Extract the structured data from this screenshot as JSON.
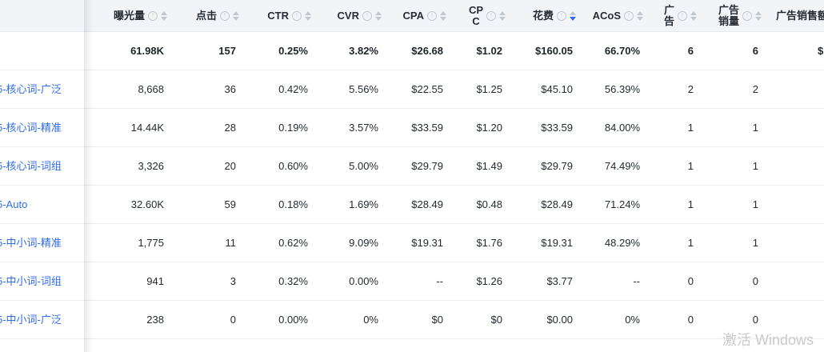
{
  "table": {
    "columns": [
      {
        "label": "曝光量"
      },
      {
        "label": "点击"
      },
      {
        "label": "CTR"
      },
      {
        "label": "CVR"
      },
      {
        "label": "CPA"
      },
      {
        "label": "CP\nC"
      },
      {
        "label": "花费",
        "sorted": "desc"
      },
      {
        "label": "ACoS"
      },
      {
        "label": "广\n告"
      },
      {
        "label": "广告\n销量"
      },
      {
        "label": "广告销售额"
      }
    ],
    "totals": {
      "impressions": "61.98K",
      "clicks": "157",
      "ctr": "0.25%",
      "cvr": "3.82%",
      "cpa": "$26.68",
      "cpc": "$1.02",
      "spend": "$160.05",
      "acos": "66.70%",
      "ad_orders": "6",
      "ad_units": "6",
      "ad_sales": "$"
    },
    "rows": [
      {
        "name": "5-核心词-广泛",
        "impressions": "8,668",
        "clicks": "36",
        "ctr": "0.42%",
        "cvr": "5.56%",
        "cpa": "$22.55",
        "cpc": "$1.25",
        "spend": "$45.10",
        "acos": "56.39%",
        "ad_orders": "2",
        "ad_units": "2"
      },
      {
        "name": "5-核心词-精准",
        "impressions": "14.44K",
        "clicks": "28",
        "ctr": "0.19%",
        "cvr": "3.57%",
        "cpa": "$33.59",
        "cpc": "$1.20",
        "spend": "$33.59",
        "acos": "84.00%",
        "ad_orders": "1",
        "ad_units": "1"
      },
      {
        "name": "5-核心词-词组",
        "impressions": "3,326",
        "clicks": "20",
        "ctr": "0.60%",
        "cvr": "5.00%",
        "cpa": "$29.79",
        "cpc": "$1.49",
        "spend": "$29.79",
        "acos": "74.49%",
        "ad_orders": "1",
        "ad_units": "1"
      },
      {
        "name": "5-Auto",
        "impressions": "32.60K",
        "clicks": "59",
        "ctr": "0.18%",
        "cvr": "1.69%",
        "cpa": "$28.49",
        "cpc": "$0.48",
        "spend": "$28.49",
        "acos": "71.24%",
        "ad_orders": "1",
        "ad_units": "1"
      },
      {
        "name": "5-中小词-精准",
        "impressions": "1,775",
        "clicks": "11",
        "ctr": "0.62%",
        "cvr": "9.09%",
        "cpa": "$19.31",
        "cpc": "$1.76",
        "spend": "$19.31",
        "acos": "48.29%",
        "ad_orders": "1",
        "ad_units": "1"
      },
      {
        "name": "5-中小词-词组",
        "impressions": "941",
        "clicks": "3",
        "ctr": "0.32%",
        "cvr": "0.00%",
        "cpa": "--",
        "cpc": "$1.26",
        "spend": "$3.77",
        "acos": "--",
        "ad_orders": "0",
        "ad_units": "0"
      },
      {
        "name": "5-中小词-广泛",
        "impressions": "238",
        "clicks": "0",
        "ctr": "0.00%",
        "cvr": "0%",
        "cpa": "$0",
        "cpc": "$0",
        "spend": "$0.00",
        "acos": "0%",
        "ad_orders": "0",
        "ad_units": "0"
      }
    ]
  },
  "watermark": "激活 Windows",
  "colors": {
    "header_bg": "#f3f4f7",
    "row_border": "#ebedf0",
    "link_blue": "#2f6be4",
    "sort_active_blue": "#2f6bf0",
    "text": "#242933",
    "watermark_gray": "#c9cacb"
  }
}
